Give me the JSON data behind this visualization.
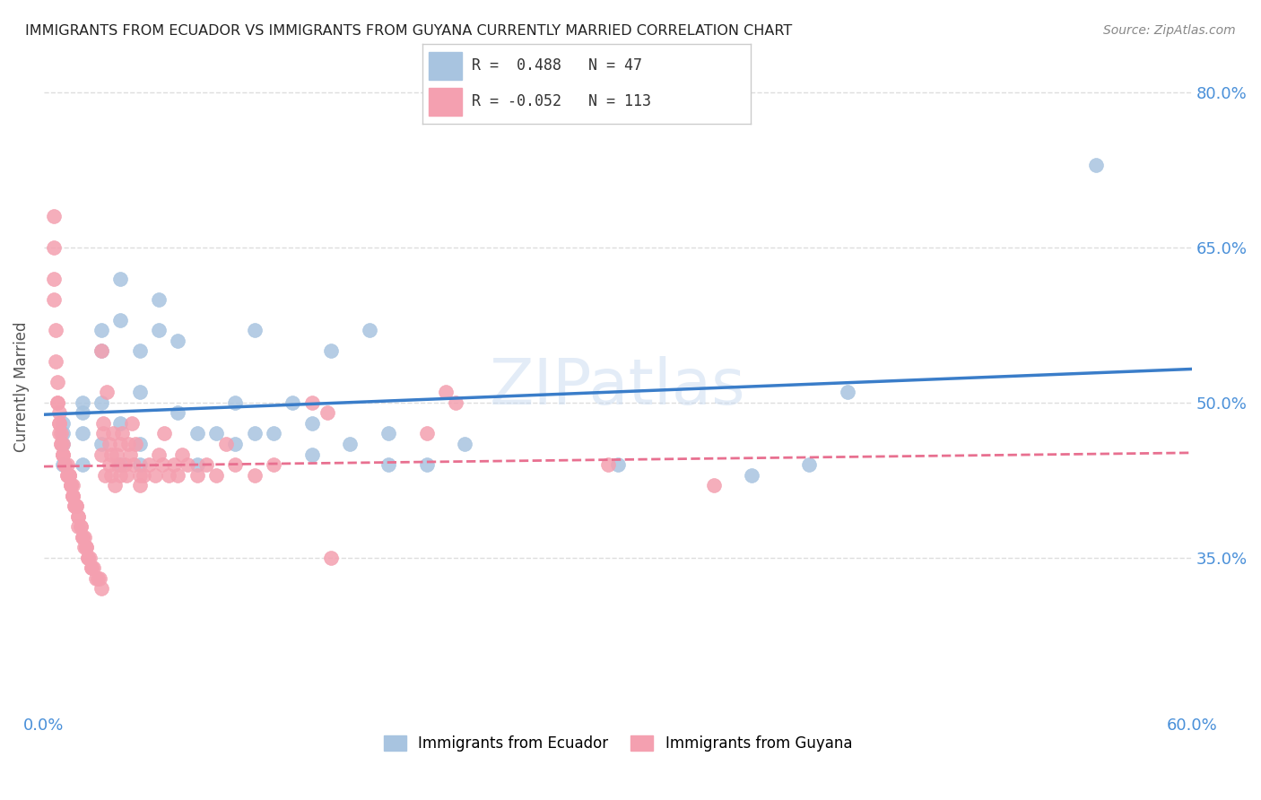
{
  "title": "IMMIGRANTS FROM ECUADOR VS IMMIGRANTS FROM GUYANA CURRENTLY MARRIED CORRELATION CHART",
  "source": "Source: ZipAtlas.com",
  "ylabel": "Currently Married",
  "x_min": 0.0,
  "x_max": 0.6,
  "y_min": 0.2,
  "y_max": 0.83,
  "y_ticks": [
    0.35,
    0.5,
    0.65,
    0.8
  ],
  "y_tick_labels": [
    "35.0%",
    "50.0%",
    "65.0%",
    "80.0%"
  ],
  "x_ticks": [
    0.0,
    0.1,
    0.2,
    0.3,
    0.4,
    0.5,
    0.6
  ],
  "ecuador_color": "#a8c4e0",
  "guyana_color": "#f4a0b0",
  "ecuador_line_color": "#3a7dc9",
  "guyana_line_color": "#e87090",
  "ecuador_R": 0.488,
  "ecuador_N": 47,
  "guyana_R": -0.052,
  "guyana_N": 113,
  "watermark": "ZIPatlas",
  "background_color": "#ffffff",
  "grid_color": "#dddddd",
  "label_color": "#4a90d9",
  "ecuador_points": [
    [
      0.01,
      0.46
    ],
    [
      0.01,
      0.44
    ],
    [
      0.01,
      0.48
    ],
    [
      0.01,
      0.47
    ],
    [
      0.02,
      0.5
    ],
    [
      0.02,
      0.44
    ],
    [
      0.02,
      0.47
    ],
    [
      0.02,
      0.49
    ],
    [
      0.03,
      0.55
    ],
    [
      0.03,
      0.57
    ],
    [
      0.03,
      0.5
    ],
    [
      0.03,
      0.46
    ],
    [
      0.04,
      0.48
    ],
    [
      0.04,
      0.44
    ],
    [
      0.04,
      0.58
    ],
    [
      0.04,
      0.62
    ],
    [
      0.05,
      0.55
    ],
    [
      0.05,
      0.51
    ],
    [
      0.05,
      0.46
    ],
    [
      0.05,
      0.44
    ],
    [
      0.06,
      0.6
    ],
    [
      0.06,
      0.57
    ],
    [
      0.07,
      0.56
    ],
    [
      0.07,
      0.49
    ],
    [
      0.08,
      0.47
    ],
    [
      0.08,
      0.44
    ],
    [
      0.09,
      0.47
    ],
    [
      0.1,
      0.46
    ],
    [
      0.1,
      0.5
    ],
    [
      0.11,
      0.57
    ],
    [
      0.11,
      0.47
    ],
    [
      0.12,
      0.47
    ],
    [
      0.13,
      0.5
    ],
    [
      0.14,
      0.48
    ],
    [
      0.14,
      0.45
    ],
    [
      0.15,
      0.55
    ],
    [
      0.16,
      0.46
    ],
    [
      0.17,
      0.57
    ],
    [
      0.18,
      0.44
    ],
    [
      0.18,
      0.47
    ],
    [
      0.2,
      0.44
    ],
    [
      0.22,
      0.46
    ],
    [
      0.3,
      0.44
    ],
    [
      0.37,
      0.43
    ],
    [
      0.4,
      0.44
    ],
    [
      0.42,
      0.51
    ],
    [
      0.55,
      0.73
    ]
  ],
  "guyana_points": [
    [
      0.005,
      0.68
    ],
    [
      0.005,
      0.65
    ],
    [
      0.005,
      0.62
    ],
    [
      0.005,
      0.6
    ],
    [
      0.006,
      0.57
    ],
    [
      0.006,
      0.54
    ],
    [
      0.007,
      0.52
    ],
    [
      0.007,
      0.5
    ],
    [
      0.007,
      0.5
    ],
    [
      0.008,
      0.49
    ],
    [
      0.008,
      0.48
    ],
    [
      0.008,
      0.48
    ],
    [
      0.008,
      0.47
    ],
    [
      0.009,
      0.47
    ],
    [
      0.009,
      0.46
    ],
    [
      0.009,
      0.46
    ],
    [
      0.01,
      0.46
    ],
    [
      0.01,
      0.45
    ],
    [
      0.01,
      0.45
    ],
    [
      0.01,
      0.45
    ],
    [
      0.011,
      0.44
    ],
    [
      0.011,
      0.44
    ],
    [
      0.011,
      0.44
    ],
    [
      0.012,
      0.44
    ],
    [
      0.012,
      0.43
    ],
    [
      0.012,
      0.43
    ],
    [
      0.013,
      0.43
    ],
    [
      0.013,
      0.43
    ],
    [
      0.013,
      0.43
    ],
    [
      0.014,
      0.42
    ],
    [
      0.014,
      0.42
    ],
    [
      0.014,
      0.42
    ],
    [
      0.015,
      0.42
    ],
    [
      0.015,
      0.41
    ],
    [
      0.015,
      0.41
    ],
    [
      0.015,
      0.41
    ],
    [
      0.016,
      0.4
    ],
    [
      0.016,
      0.4
    ],
    [
      0.017,
      0.4
    ],
    [
      0.017,
      0.4
    ],
    [
      0.018,
      0.39
    ],
    [
      0.018,
      0.39
    ],
    [
      0.018,
      0.38
    ],
    [
      0.019,
      0.38
    ],
    [
      0.019,
      0.38
    ],
    [
      0.02,
      0.37
    ],
    [
      0.02,
      0.37
    ],
    [
      0.021,
      0.37
    ],
    [
      0.021,
      0.36
    ],
    [
      0.022,
      0.36
    ],
    [
      0.022,
      0.36
    ],
    [
      0.023,
      0.35
    ],
    [
      0.023,
      0.35
    ],
    [
      0.024,
      0.35
    ],
    [
      0.025,
      0.34
    ],
    [
      0.025,
      0.34
    ],
    [
      0.026,
      0.34
    ],
    [
      0.027,
      0.33
    ],
    [
      0.028,
      0.33
    ],
    [
      0.029,
      0.33
    ],
    [
      0.03,
      0.32
    ],
    [
      0.03,
      0.55
    ],
    [
      0.03,
      0.45
    ],
    [
      0.031,
      0.47
    ],
    [
      0.031,
      0.48
    ],
    [
      0.032,
      0.43
    ],
    [
      0.033,
      0.51
    ],
    [
      0.034,
      0.44
    ],
    [
      0.034,
      0.46
    ],
    [
      0.035,
      0.45
    ],
    [
      0.035,
      0.43
    ],
    [
      0.036,
      0.47
    ],
    [
      0.037,
      0.42
    ],
    [
      0.038,
      0.45
    ],
    [
      0.039,
      0.44
    ],
    [
      0.04,
      0.43
    ],
    [
      0.04,
      0.46
    ],
    [
      0.041,
      0.47
    ],
    [
      0.042,
      0.44
    ],
    [
      0.043,
      0.43
    ],
    [
      0.044,
      0.46
    ],
    [
      0.045,
      0.45
    ],
    [
      0.046,
      0.48
    ],
    [
      0.047,
      0.44
    ],
    [
      0.048,
      0.46
    ],
    [
      0.05,
      0.43
    ],
    [
      0.05,
      0.42
    ],
    [
      0.052,
      0.43
    ],
    [
      0.055,
      0.44
    ],
    [
      0.058,
      0.43
    ],
    [
      0.06,
      0.45
    ],
    [
      0.062,
      0.44
    ],
    [
      0.063,
      0.47
    ],
    [
      0.065,
      0.43
    ],
    [
      0.068,
      0.44
    ],
    [
      0.07,
      0.43
    ],
    [
      0.072,
      0.45
    ],
    [
      0.075,
      0.44
    ],
    [
      0.08,
      0.43
    ],
    [
      0.085,
      0.44
    ],
    [
      0.09,
      0.43
    ],
    [
      0.095,
      0.46
    ],
    [
      0.1,
      0.44
    ],
    [
      0.11,
      0.43
    ],
    [
      0.12,
      0.44
    ],
    [
      0.14,
      0.5
    ],
    [
      0.148,
      0.49
    ],
    [
      0.15,
      0.35
    ],
    [
      0.2,
      0.47
    ],
    [
      0.21,
      0.51
    ],
    [
      0.215,
      0.5
    ],
    [
      0.295,
      0.44
    ],
    [
      0.35,
      0.42
    ]
  ]
}
